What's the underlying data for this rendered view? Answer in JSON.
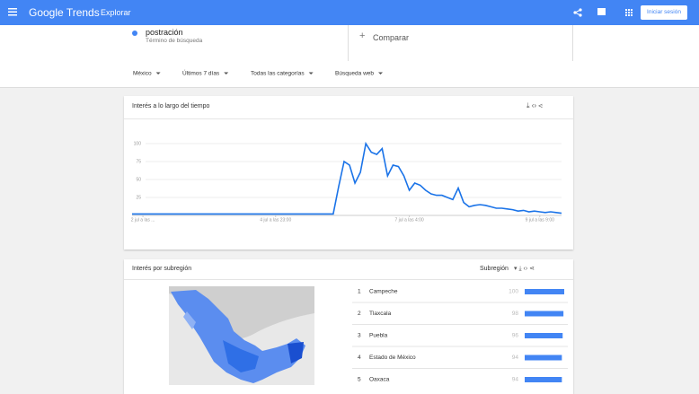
{
  "header": {
    "logo": "Google Trends",
    "section": "Explorar",
    "sign_in": "Iniciar sesión"
  },
  "search": {
    "term": "postración",
    "term_type": "Término de búsqueda",
    "compare": "Comparar"
  },
  "filters": [
    "México",
    "Últimos 7 días",
    "Todas las categorías",
    "Búsqueda web"
  ],
  "interest_over_time": {
    "title": "Interés a lo largo del tiempo",
    "chart_data": {
      "type": "line",
      "color": "#1a73e8",
      "grid": true,
      "values": [
        2,
        2,
        2,
        2,
        2,
        2,
        2,
        2,
        2,
        2,
        2,
        2,
        2,
        2,
        2,
        2,
        2,
        2,
        2,
        2,
        2,
        2,
        2,
        2,
        2,
        2,
        2,
        2,
        2,
        2,
        2,
        2,
        2,
        2,
        2,
        2,
        2,
        2,
        40,
        75,
        70,
        45,
        60,
        100,
        88,
        85,
        93,
        55,
        70,
        68,
        55,
        35,
        45,
        42,
        35,
        30,
        28,
        28,
        25,
        22,
        38,
        18,
        12,
        14,
        15,
        14,
        12,
        10,
        10,
        9,
        8,
        6,
        7,
        5,
        6,
        5,
        4,
        5,
        4,
        3
      ],
      "xlim": [
        0,
        79
      ],
      "ylim": [
        0,
        100
      ],
      "yticks": [
        25,
        50,
        75,
        100
      ],
      "xticks": [
        {
          "value": 2,
          "label": "2 jul a las ..."
        },
        {
          "value": 26.4,
          "label": "4 jul a las 23:00"
        },
        {
          "value": 51,
          "label": "7 jul a las 4:00"
        },
        {
          "value": 75,
          "label": "9 jul a las 9:00"
        }
      ]
    }
  },
  "subregion": {
    "title": "Interés por subregión",
    "selector": "Subregión",
    "bar_color": "#4285f4",
    "rows": [
      {
        "rank": 1,
        "name": "Campeche",
        "value": 100
      },
      {
        "rank": 2,
        "name": "Tlaxcala",
        "value": 98
      },
      {
        "rank": 3,
        "name": "Puebla",
        "value": 96
      },
      {
        "rank": 4,
        "name": "Estado de México",
        "value": 94
      },
      {
        "rank": 5,
        "name": "Oaxaca",
        "value": 94
      }
    ]
  }
}
